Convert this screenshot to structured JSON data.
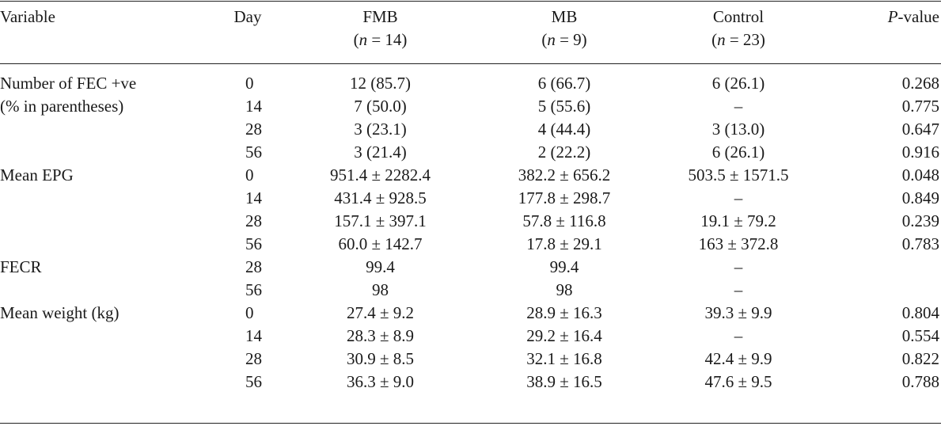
{
  "table": {
    "headers": {
      "variable": "Variable",
      "day": "Day",
      "fmb": "FMB",
      "fmb_n": "(n = 14)",
      "mb": "MB",
      "mb_n": "(n = 9)",
      "control": "Control",
      "control_n": "(n = 23)",
      "p_italic": "P",
      "p_rest": "-value"
    },
    "rows": [
      {
        "variable": "Number of FEC +ve",
        "day": "0",
        "fmb": "12 (85.7)",
        "mb": "6 (66.7)",
        "control": "6 (26.1)",
        "p": "0.268"
      },
      {
        "variable": "(% in parentheses)",
        "day": "14",
        "fmb": "7 (50.0)",
        "mb": "5 (55.6)",
        "control": "–",
        "p": "0.775"
      },
      {
        "variable": "",
        "day": "28",
        "fmb": "3 (23.1)",
        "mb": "4 (44.4)",
        "control": "3 (13.0)",
        "p": "0.647"
      },
      {
        "variable": "",
        "day": "56",
        "fmb": "3 (21.4)",
        "mb": "2 (22.2)",
        "control": "6 (26.1)",
        "p": "0.916"
      },
      {
        "variable": "Mean EPG",
        "day": "0",
        "fmb": "951.4 ± 2282.4",
        "mb": "382.2 ± 656.2",
        "control": "503.5 ± 1571.5",
        "p": "0.048"
      },
      {
        "variable": "",
        "day": "14",
        "fmb": "431.4 ± 928.5",
        "mb": "177.8 ± 298.7",
        "control": "–",
        "p": "0.849"
      },
      {
        "variable": "",
        "day": "28",
        "fmb": "157.1 ± 397.1",
        "mb": "57.8 ± 116.8",
        "control": "19.1 ± 79.2",
        "p": "0.239"
      },
      {
        "variable": "",
        "day": "56",
        "fmb": "60.0 ± 142.7",
        "mb": "17.8 ± 29.1",
        "control": "163 ± 372.8",
        "p": "0.783"
      },
      {
        "variable": "FECR",
        "day": "28",
        "fmb": "99.4",
        "mb": "99.4",
        "control": "–",
        "p": ""
      },
      {
        "variable": "",
        "day": "56",
        "fmb": "98",
        "mb": "98",
        "control": "–",
        "p": ""
      },
      {
        "variable": "Mean weight (kg)",
        "day": "0",
        "fmb": "27.4 ± 9.2",
        "mb": "28.9 ± 16.3",
        "control": "39.3 ± 9.9",
        "p": "0.804"
      },
      {
        "variable": "",
        "day": "14",
        "fmb": "28.3 ± 8.9",
        "mb": "29.2 ± 16.4",
        "control": "–",
        "p": "0.554"
      },
      {
        "variable": "",
        "day": "28",
        "fmb": "30.9 ± 8.5",
        "mb": "32.1 ± 16.8",
        "control": "42.4 ± 9.9",
        "p": "0.822"
      },
      {
        "variable": "",
        "day": "56",
        "fmb": "36.3 ± 9.0",
        "mb": "38.9 ± 16.5",
        "control": "47.6 ± 9.5",
        "p": "0.788"
      }
    ]
  }
}
